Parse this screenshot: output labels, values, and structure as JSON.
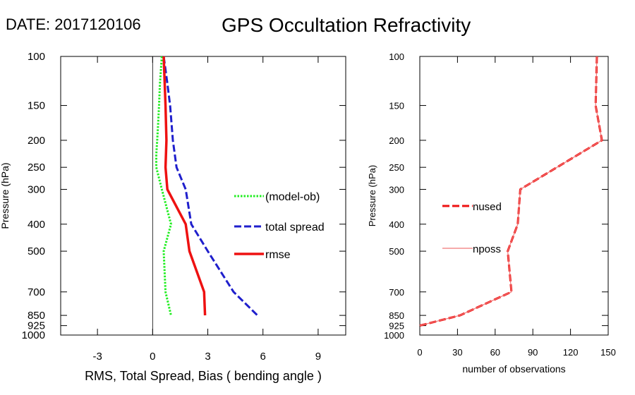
{
  "header": {
    "date_label": "DATE: 2017120106",
    "title": "GPS Occultation Refractivity"
  },
  "chart_data": [
    {
      "type": "line",
      "y_scale": "log",
      "ylabel": "Pressure (hPa)",
      "xlabel": "RMS, Total Spread, Bias ( bending angle )",
      "xlim": [
        -5,
        10.5
      ],
      "ylim": [
        1000,
        100
      ],
      "x_ticks": [
        -3,
        0,
        3,
        6,
        9
      ],
      "y_ticks": [
        100,
        150,
        200,
        250,
        300,
        400,
        500,
        700,
        850,
        925,
        1000
      ],
      "grid": false,
      "legend_position": "right",
      "zero_line": true,
      "series": [
        {
          "name": "(model-ob)",
          "color": "#22ee22",
          "style": "dotted",
          "points": [
            [
              0.5,
              100
            ],
            [
              0.4,
              125
            ],
            [
              0.35,
              150
            ],
            [
              0.3,
              175
            ],
            [
              0.25,
              200
            ],
            [
              0.2,
              225
            ],
            [
              0.2,
              250
            ],
            [
              0.5,
              300
            ],
            [
              1.0,
              400
            ],
            [
              0.6,
              500
            ],
            [
              0.7,
              700
            ],
            [
              1.0,
              850
            ]
          ]
        },
        {
          "name": "total spread",
          "color": "#1f1fcc",
          "style": "dashed",
          "points": [
            [
              0.6,
              100
            ],
            [
              0.8,
              125
            ],
            [
              0.95,
              150
            ],
            [
              1.1,
              200
            ],
            [
              1.3,
              250
            ],
            [
              1.8,
              300
            ],
            [
              2.1,
              400
            ],
            [
              3.0,
              500
            ],
            [
              4.4,
              700
            ],
            [
              5.7,
              850
            ]
          ]
        },
        {
          "name": "rmse",
          "color": "#ee1111",
          "style": "solid",
          "points": [
            [
              0.6,
              100
            ],
            [
              0.7,
              150
            ],
            [
              0.75,
              200
            ],
            [
              0.7,
              250
            ],
            [
              0.8,
              300
            ],
            [
              1.8,
              400
            ],
            [
              2.0,
              500
            ],
            [
              2.8,
              700
            ],
            [
              2.85,
              850
            ]
          ]
        }
      ]
    },
    {
      "type": "line",
      "y_scale": "log",
      "ylabel": "Pressure (hPa)",
      "xlabel": "number of observations",
      "xlim": [
        0,
        150
      ],
      "ylim": [
        1000,
        100
      ],
      "x_ticks": [
        0,
        30,
        60,
        90,
        120,
        150
      ],
      "y_ticks": [
        100,
        150,
        200,
        250,
        300,
        400,
        500,
        700,
        850,
        925,
        1000
      ],
      "grid": false,
      "legend_position": "left",
      "series": [
        {
          "name": "nused",
          "color": "#ee1111",
          "style": "dashed",
          "points": [
            [
              141,
              100
            ],
            [
              140,
              150
            ],
            [
              145,
              200
            ],
            [
              80,
              300
            ],
            [
              78,
              400
            ],
            [
              70,
              500
            ],
            [
              73,
              700
            ],
            [
              32,
              850
            ],
            [
              0,
              925
            ]
          ]
        },
        {
          "name": "nposs",
          "color": "#f07878",
          "style": "solid",
          "points": [
            [
              141,
              100
            ],
            [
              140,
              150
            ],
            [
              145,
              200
            ],
            [
              80,
              300
            ],
            [
              78,
              400
            ],
            [
              70,
              500
            ],
            [
              73,
              700
            ],
            [
              32,
              850
            ],
            [
              0,
              925
            ]
          ]
        }
      ]
    }
  ]
}
